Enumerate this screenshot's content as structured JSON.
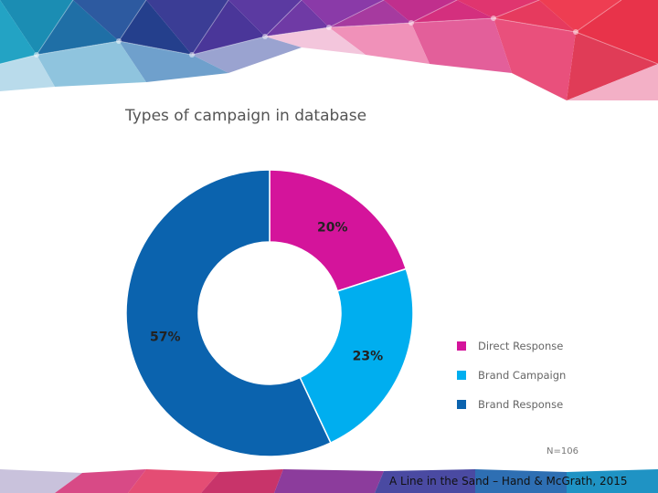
{
  "chart_data": {
    "type": "pie",
    "style": "donut",
    "title": "Types of campaign in database",
    "categories": [
      "Direct Response",
      "Brand Campaign",
      "Brand Response"
    ],
    "values": [
      20,
      23,
      57
    ],
    "value_labels": [
      "20%",
      "23%",
      "57%"
    ],
    "colors": [
      "#D4149B",
      "#00AEEF",
      "#0B63AE"
    ],
    "legend_position": "right",
    "note": "N=106"
  },
  "footer": {
    "citation": "A Line in the Sand – Hand & McGrath, 2015"
  },
  "theme": {
    "banner_colors": [
      "#1a7fa8",
      "#2a4f9a",
      "#6b3aa0",
      "#c0207a",
      "#e8325a"
    ]
  }
}
